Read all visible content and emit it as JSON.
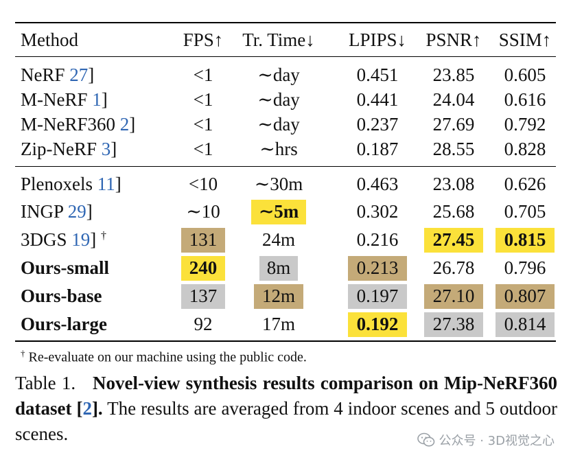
{
  "headers": [
    "Method",
    "FPS↑",
    "Tr. Time↓",
    "LPIPS↓",
    "PSNR↑",
    "SSIM↑"
  ],
  "group1": [
    {
      "name": "NeRF ",
      "ref": "27",
      "fps": "<1",
      "time": "∼day",
      "lpips": "0.451",
      "psnr": "23.85",
      "ssim": "0.605"
    },
    {
      "name": "M-NeRF ",
      "ref": "1",
      "fps": "<1",
      "time": "∼day",
      "lpips": "0.441",
      "psnr": "24.04",
      "ssim": "0.616"
    },
    {
      "name": "M-NeRF360 ",
      "ref": "2",
      "fps": "<1",
      "time": "∼day",
      "lpips": "0.237",
      "psnr": "27.69",
      "ssim": "0.792"
    },
    {
      "name": "Zip-NeRF ",
      "ref": "3",
      "fps": "<1",
      "time": "∼hrs",
      "lpips": "0.187",
      "psnr": "28.55",
      "ssim": "0.828"
    }
  ],
  "group2": [
    {
      "name": "Plenoxels ",
      "ref": "11",
      "fps": "<10",
      "time": "∼30m",
      "lpips": "0.463",
      "psnr": "23.08",
      "ssim": "0.626"
    },
    {
      "name": "INGP ",
      "ref": "29",
      "fps": "∼10",
      "time": "∼5m",
      "lpips": "0.302",
      "psnr": "25.68",
      "ssim": "0.705"
    },
    {
      "name": "3DGS ",
      "ref": "19",
      "dagger": "†",
      "fps": "131",
      "time": "24m",
      "lpips": "0.216",
      "psnr": "27.45",
      "ssim": "0.815"
    },
    {
      "name": "Ours-small",
      "fps": "240",
      "time": "8m",
      "lpips": "0.213",
      "psnr": "26.78",
      "ssim": "0.796"
    },
    {
      "name": "Ours-base",
      "fps": "137",
      "time": "12m",
      "lpips": "0.197",
      "psnr": "27.10",
      "ssim": "0.807"
    },
    {
      "name": "Ours-large",
      "fps": "92",
      "time": "17m",
      "lpips": "0.192",
      "psnr": "27.38",
      "ssim": "0.814"
    }
  ],
  "footnote": {
    "mark": "†",
    "text": " Re-evaluate on our machine using the public code."
  },
  "caption": {
    "label": "Table 1.",
    "bold_text": "Novel-view synthesis results comparison on Mip-NeRF360 dataset [",
    "bold_ref": "2",
    "bold_end": "].",
    "rest": " The results are averaged from 4 indoor scenes and 5 outdoor scenes."
  },
  "watermark": "公众号 · 3D视觉之心",
  "colors": {
    "first": "#fbe13a",
    "second": "#c9c9c9",
    "third": "#c4aa78",
    "ref": "#2f66b3"
  }
}
